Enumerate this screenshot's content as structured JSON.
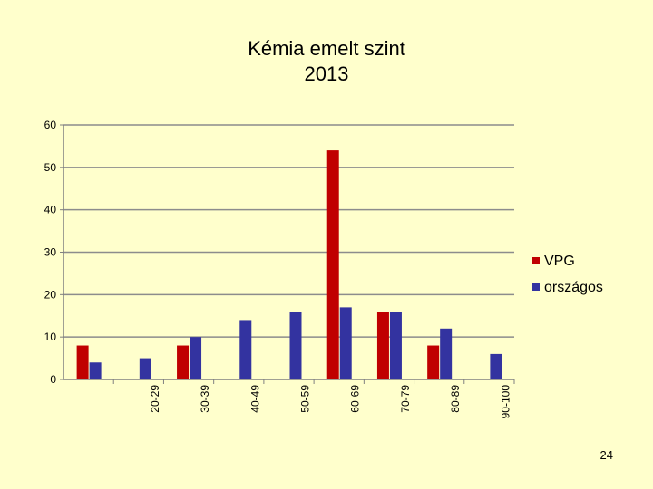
{
  "chart_data": {
    "type": "bar",
    "title_lines": [
      "Kémia emelt szint",
      "2013"
    ],
    "categories": [
      "",
      "20-29",
      "30-39",
      "40-49",
      "50-59",
      "60-69",
      "70-79",
      "80-89",
      "90-100"
    ],
    "series": [
      {
        "name": "VPG",
        "color": "#c00000",
        "values": [
          8,
          0,
          8,
          0,
          0,
          54,
          16,
          8,
          0
        ]
      },
      {
        "name": "országos",
        "color": "#3333a0",
        "values": [
          4,
          5,
          10,
          14,
          16,
          17,
          16,
          12,
          6
        ]
      }
    ],
    "ylim": [
      0,
      60
    ],
    "yticks": [
      0,
      10,
      20,
      30,
      40,
      50,
      60
    ],
    "grid": true,
    "legend": "right"
  },
  "page_number": "24"
}
